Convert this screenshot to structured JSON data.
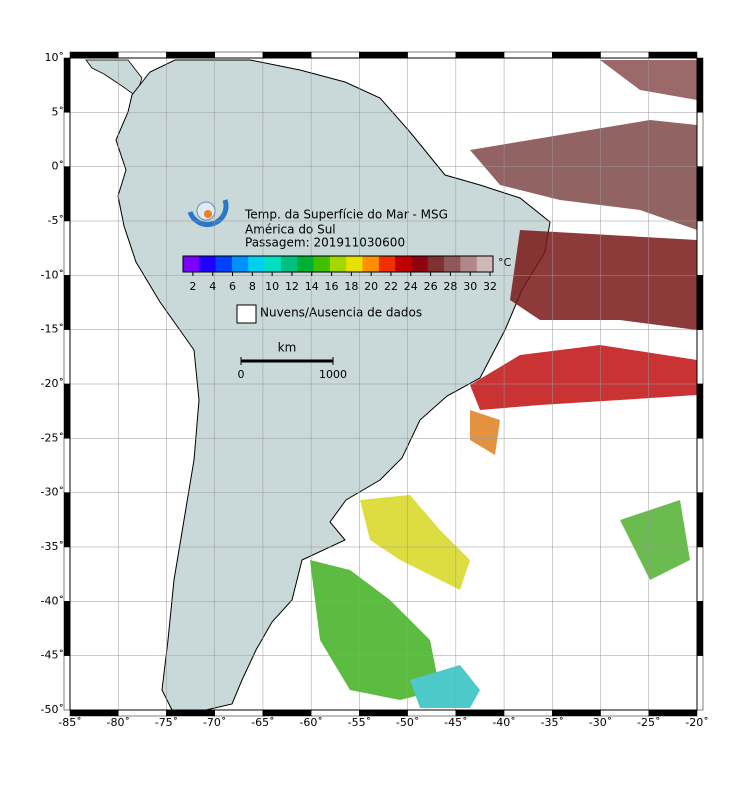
{
  "title_lines": [
    "Temp. da Superfície do Mar - MSG",
    "América do Sul",
    "Passagem: 201911030600"
  ],
  "colorbar": {
    "unit": "°C",
    "lim": [
      1,
      32.3
    ],
    "ticks": [
      2,
      4,
      6,
      8,
      10,
      12,
      14,
      16,
      18,
      20,
      22,
      24,
      26,
      28,
      30,
      32
    ],
    "colors": [
      "#7a00ff",
      "#2000ff",
      "#0040ff",
      "#0090ff",
      "#00d0f0",
      "#00e0c0",
      "#00c080",
      "#00b030",
      "#40c000",
      "#a0d800",
      "#e8e000",
      "#ff9000",
      "#f03000",
      "#c00000",
      "#900010",
      "#803030",
      "#905858",
      "#b08888",
      "#d0b8b8"
    ]
  },
  "legend": {
    "clouds": "Nuvens/Ausencia de dados"
  },
  "scalebar": {
    "unit": "km",
    "ticks": [
      0,
      1000
    ]
  },
  "axes": {
    "xlim": [
      -85,
      -20
    ],
    "ylim": [
      -50,
      10
    ],
    "xticks": [
      {
        "value": -85,
        "label": "-85˚"
      },
      {
        "value": -80,
        "label": "-80˚"
      },
      {
        "value": -75,
        "label": "-75˚"
      },
      {
        "value": -70,
        "label": "-70˚"
      },
      {
        "value": -65,
        "label": "-65˚"
      },
      {
        "value": -60,
        "label": "-60˚"
      },
      {
        "value": -55,
        "label": "-55˚"
      },
      {
        "value": -50,
        "label": "-50˚"
      },
      {
        "value": -45,
        "label": "-45˚"
      },
      {
        "value": -40,
        "label": "-40˚"
      },
      {
        "value": -35,
        "label": "-35˚"
      },
      {
        "value": -30,
        "label": "-30˚"
      },
      {
        "value": -25,
        "label": "-25˚"
      },
      {
        "value": -20,
        "label": "-20˚"
      }
    ],
    "yticks": [
      {
        "value": 10,
        "label": "10˚"
      },
      {
        "value": 5,
        "label": "5˚"
      },
      {
        "value": 0,
        "label": "0˚"
      },
      {
        "value": -5,
        "label": "-5˚"
      },
      {
        "value": -10,
        "label": "-10˚"
      },
      {
        "value": -15,
        "label": "-15˚"
      },
      {
        "value": -20,
        "label": "-20˚"
      },
      {
        "value": -25,
        "label": "-25˚"
      },
      {
        "value": -30,
        "label": "-30˚"
      },
      {
        "value": -35,
        "label": "-35˚"
      },
      {
        "value": -40,
        "label": "-40˚"
      },
      {
        "value": -45,
        "label": "-45˚"
      },
      {
        "value": -50,
        "label": "-50˚"
      }
    ]
  }
}
